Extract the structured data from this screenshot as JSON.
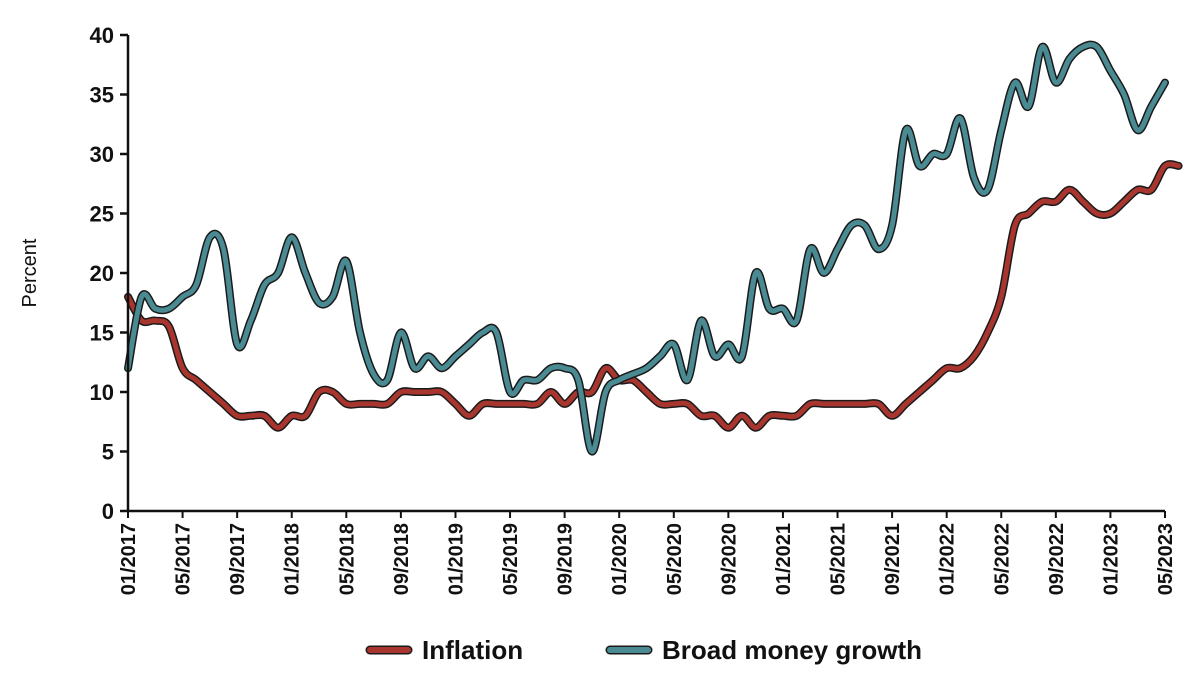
{
  "chart_data": {
    "type": "line",
    "title": "",
    "xlabel": "",
    "ylabel": "Percent",
    "ylim": [
      0,
      40
    ],
    "yticks": [
      0,
      5,
      10,
      15,
      20,
      25,
      30,
      35,
      40
    ],
    "x_tick_labels": [
      "01/2017",
      "05/2017",
      "09/2017",
      "01/2018",
      "05/2018",
      "09/2018",
      "01/2019",
      "05/2019",
      "09/2019",
      "01/2020",
      "05/2020",
      "09/2020",
      "01/2021",
      "05/2021",
      "09/2021",
      "01/2022",
      "05/2022",
      "09/2022",
      "01/2023",
      "05/2023"
    ],
    "legend_position": "bottom",
    "grid": false,
    "series": [
      {
        "name": "Inflation",
        "color": "#a8362f",
        "points": [
          [
            "01/2017",
            18
          ],
          [
            "02/2017",
            16
          ],
          [
            "03/2017",
            16
          ],
          [
            "04/2017",
            15.5
          ],
          [
            "05/2017",
            12
          ],
          [
            "06/2017",
            11
          ],
          [
            "07/2017",
            10
          ],
          [
            "08/2017",
            9
          ],
          [
            "09/2017",
            8
          ],
          [
            "10/2017",
            8
          ],
          [
            "11/2017",
            8
          ],
          [
            "12/2017",
            7
          ],
          [
            "01/2018",
            8
          ],
          [
            "02/2018",
            8
          ],
          [
            "03/2018",
            10
          ],
          [
            "04/2018",
            10
          ],
          [
            "05/2018",
            9
          ],
          [
            "06/2018",
            9
          ],
          [
            "07/2018",
            9
          ],
          [
            "08/2018",
            9
          ],
          [
            "09/2018",
            10
          ],
          [
            "10/2018",
            10
          ],
          [
            "11/2018",
            10
          ],
          [
            "12/2018",
            10
          ],
          [
            "01/2019",
            9
          ],
          [
            "02/2019",
            8
          ],
          [
            "03/2019",
            9
          ],
          [
            "04/2019",
            9
          ],
          [
            "05/2019",
            9
          ],
          [
            "06/2019",
            9
          ],
          [
            "07/2019",
            9
          ],
          [
            "08/2019",
            10
          ],
          [
            "09/2019",
            9
          ],
          [
            "10/2019",
            10
          ],
          [
            "11/2019",
            10
          ],
          [
            "12/2019",
            12
          ],
          [
            "01/2020",
            11
          ],
          [
            "02/2020",
            11
          ],
          [
            "03/2020",
            10
          ],
          [
            "04/2020",
            9
          ],
          [
            "05/2020",
            9
          ],
          [
            "06/2020",
            9
          ],
          [
            "07/2020",
            8
          ],
          [
            "08/2020",
            8
          ],
          [
            "09/2020",
            7
          ],
          [
            "10/2020",
            8
          ],
          [
            "11/2020",
            7
          ],
          [
            "12/2020",
            8
          ],
          [
            "01/2021",
            8
          ],
          [
            "02/2021",
            8
          ],
          [
            "03/2021",
            9
          ],
          [
            "04/2021",
            9
          ],
          [
            "05/2021",
            9
          ],
          [
            "06/2021",
            9
          ],
          [
            "07/2021",
            9
          ],
          [
            "08/2021",
            9
          ],
          [
            "09/2021",
            8
          ],
          [
            "10/2021",
            9
          ],
          [
            "11/2021",
            10
          ],
          [
            "12/2021",
            11
          ],
          [
            "01/2022",
            12
          ],
          [
            "02/2022",
            12
          ],
          [
            "03/2022",
            13
          ],
          [
            "04/2022",
            15
          ],
          [
            "05/2022",
            18
          ],
          [
            "06/2022",
            24
          ],
          [
            "07/2022",
            25
          ],
          [
            "08/2022",
            26
          ],
          [
            "09/2022",
            26
          ],
          [
            "10/2022",
            27
          ],
          [
            "11/2022",
            26
          ],
          [
            "12/2022",
            25
          ],
          [
            "01/2023",
            25
          ],
          [
            "02/2023",
            26
          ],
          [
            "03/2023",
            27
          ],
          [
            "04/2023",
            27
          ],
          [
            "05/2023",
            29
          ],
          [
            "06/2023",
            29
          ]
        ]
      },
      {
        "name": "Broad money growth",
        "color": "#4a8a92",
        "points": [
          [
            "01/2017",
            12
          ],
          [
            "02/2017",
            18
          ],
          [
            "03/2017",
            17
          ],
          [
            "04/2017",
            17
          ],
          [
            "05/2017",
            18
          ],
          [
            "06/2017",
            19
          ],
          [
            "07/2017",
            23
          ],
          [
            "08/2017",
            22
          ],
          [
            "09/2017",
            14
          ],
          [
            "10/2017",
            16
          ],
          [
            "11/2017",
            19
          ],
          [
            "12/2017",
            20
          ],
          [
            "01/2018",
            23
          ],
          [
            "02/2018",
            20
          ],
          [
            "03/2018",
            17.5
          ],
          [
            "04/2018",
            18
          ],
          [
            "05/2018",
            21
          ],
          [
            "06/2018",
            15
          ],
          [
            "07/2018",
            11.5
          ],
          [
            "08/2018",
            11
          ],
          [
            "09/2018",
            15
          ],
          [
            "10/2018",
            12
          ],
          [
            "11/2018",
            13
          ],
          [
            "12/2018",
            12
          ],
          [
            "01/2019",
            13
          ],
          [
            "02/2019",
            14
          ],
          [
            "03/2019",
            15
          ],
          [
            "04/2019",
            15
          ],
          [
            "05/2019",
            10
          ],
          [
            "06/2019",
            11
          ],
          [
            "07/2019",
            11
          ],
          [
            "08/2019",
            12
          ],
          [
            "09/2019",
            12
          ],
          [
            "10/2019",
            11
          ],
          [
            "11/2019",
            5
          ],
          [
            "12/2019",
            10
          ],
          [
            "01/2020",
            11
          ],
          [
            "02/2020",
            11.5
          ],
          [
            "03/2020",
            12
          ],
          [
            "04/2020",
            13
          ],
          [
            "05/2020",
            14
          ],
          [
            "06/2020",
            11
          ],
          [
            "07/2020",
            16
          ],
          [
            "08/2020",
            13
          ],
          [
            "09/2020",
            14
          ],
          [
            "10/2020",
            13
          ],
          [
            "11/2020",
            20
          ],
          [
            "12/2020",
            17
          ],
          [
            "01/2021",
            17
          ],
          [
            "02/2021",
            16
          ],
          [
            "03/2021",
            22
          ],
          [
            "04/2021",
            20
          ],
          [
            "05/2021",
            22
          ],
          [
            "06/2021",
            24
          ],
          [
            "07/2021",
            24
          ],
          [
            "08/2021",
            22
          ],
          [
            "09/2021",
            24
          ],
          [
            "10/2021",
            32
          ],
          [
            "11/2021",
            29
          ],
          [
            "12/2021",
            30
          ],
          [
            "01/2022",
            30
          ],
          [
            "02/2022",
            33
          ],
          [
            "03/2022",
            28
          ],
          [
            "04/2022",
            27
          ],
          [
            "05/2022",
            32
          ],
          [
            "06/2022",
            36
          ],
          [
            "07/2022",
            34
          ],
          [
            "08/2022",
            39
          ],
          [
            "09/2022",
            36
          ],
          [
            "10/2022",
            38
          ],
          [
            "11/2022",
            39
          ],
          [
            "12/2022",
            39
          ],
          [
            "01/2023",
            37
          ],
          [
            "02/2023",
            35
          ],
          [
            "03/2023",
            32
          ],
          [
            "04/2023",
            34
          ],
          [
            "05/2023",
            36
          ]
        ]
      }
    ]
  }
}
